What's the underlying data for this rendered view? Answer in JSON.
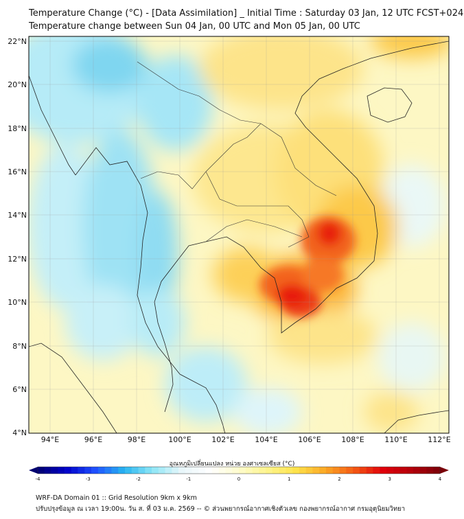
{
  "title_line1": "Temperature Change (°C) - [Data Assimilation] _ Initial Time : Saturday 03 Jan, 12 UTC FCST+024",
  "title_line2": "Temperature change between Sun 04 Jan, 00 UTC and Mon 05 Jan, 00 UTC",
  "map": {
    "lon_range": [
      93,
      112.5
    ],
    "lat_range": [
      4,
      22.25
    ],
    "lon_ticks": [
      "94°E",
      "96°E",
      "98°E",
      "100°E",
      "102°E",
      "104°E",
      "106°E",
      "108°E",
      "110°E",
      "112°E"
    ],
    "lat_ticks": [
      "22°N",
      "20°N",
      "18°N",
      "16°N",
      "14°N",
      "12°N",
      "10°N",
      "8°N",
      "6°N",
      "4°N"
    ],
    "grid": true
  },
  "colorbar": {
    "label": "อุณหภูมิเปลี่ยนแปลง หน่วย องศาเซลเซียส (°C)",
    "min": -4,
    "max": 4,
    "ticks": [
      "-4",
      "-3",
      "-2",
      "-1",
      "0",
      "1",
      "2",
      "3",
      "4"
    ],
    "colors": [
      "#000070",
      "#0000c8",
      "#1e50ff",
      "#28b4f0",
      "#8ee6f6",
      "#e8f6fa",
      "#ffffff",
      "#fefccd",
      "#fdf48c",
      "#fde24a",
      "#fba825",
      "#f45a14",
      "#e0000a",
      "#b4000a",
      "#7a0008"
    ]
  },
  "footer_line1": "WRF-DA Domain 01 :: Grid Resolution 9km x 9km",
  "footer_line2": "ปรับปรุงข้อมูล ณ เวลา 19:00น. วัน ส. ที่ 03 ม.ค. 2569 -- © ส่วนพยากรณ์อากาศเชิงตัวเลข กองพยากรณ์อากาศ กรมอุตุนิยมวิทยา"
}
